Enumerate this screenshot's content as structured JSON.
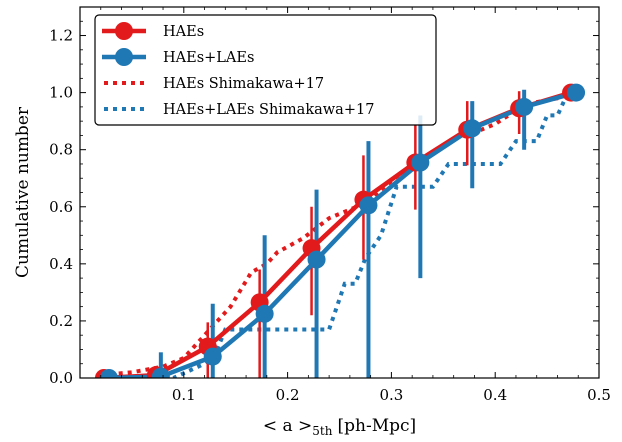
{
  "chart_data": {
    "type": "line",
    "xlabel": "< a >",
    "xlabel_subscript": "5th",
    "xlabel_unit": "[ph-Mpc]",
    "ylabel": "Cumulative number",
    "xlim": [
      0.0,
      0.5
    ],
    "ylim": [
      0.0,
      1.3
    ],
    "x_ticks": [
      0.1,
      0.2,
      0.3,
      0.4,
      0.5
    ],
    "x_tick_labels": [
      "0.1",
      "0.2",
      "0.3",
      "0.4",
      "0.5"
    ],
    "y_ticks": [
      0.0,
      0.2,
      0.4,
      0.6,
      0.8,
      1.0,
      1.2
    ],
    "y_tick_labels": [
      "0.0",
      "0.2",
      "0.4",
      "0.6",
      "0.8",
      "1.0",
      "1.2"
    ],
    "grid": false,
    "legend_position": "top-left",
    "series": [
      {
        "name": "HAEs",
        "style": "solid-marker",
        "color": "#e31a1c",
        "x": [
          0.025,
          0.075,
          0.125,
          0.175,
          0.225,
          0.275,
          0.325,
          0.375,
          0.425,
          0.475
        ],
        "y": [
          0.0,
          0.01,
          0.11,
          0.265,
          0.455,
          0.625,
          0.755,
          0.87,
          0.945,
          1.0
        ],
        "err_low": [
          0.0,
          0.0,
          0.11,
          0.265,
          0.235,
          0.21,
          0.165,
          0.125,
          0.09,
          0.0
        ],
        "err_high": [
          0.0,
          0.0,
          0.085,
          0.115,
          0.145,
          0.155,
          0.13,
          0.1,
          0.06,
          0.0
        ]
      },
      {
        "name": "HAEs+LAEs",
        "style": "solid-marker",
        "color": "#1f77b4",
        "x": [
          0.025,
          0.075,
          0.125,
          0.175,
          0.225,
          0.275,
          0.325,
          0.375,
          0.425,
          0.475
        ],
        "y": [
          0.0,
          0.005,
          0.075,
          0.225,
          0.415,
          0.605,
          0.755,
          0.875,
          0.95,
          1.0
        ],
        "err_low": [
          0.0,
          0.005,
          0.075,
          0.225,
          0.415,
          0.605,
          0.405,
          0.21,
          0.15,
          0.0
        ],
        "err_high": [
          0.0,
          0.085,
          0.185,
          0.275,
          0.245,
          0.225,
          0.165,
          0.095,
          0.06,
          0.0
        ]
      },
      {
        "name": "HAEs Shimakawa+17",
        "style": "dotted",
        "color": "#e31a1c",
        "x": [
          0.02,
          0.05,
          0.08,
          0.1,
          0.115,
          0.13,
          0.145,
          0.155,
          0.165,
          0.18,
          0.19,
          0.205,
          0.215,
          0.24,
          0.26,
          0.28,
          0.29,
          0.31,
          0.33,
          0.345,
          0.36,
          0.38,
          0.4,
          0.43,
          0.46,
          0.475
        ],
        "y": [
          0.01,
          0.02,
          0.04,
          0.07,
          0.13,
          0.19,
          0.25,
          0.31,
          0.37,
          0.4,
          0.44,
          0.47,
          0.49,
          0.56,
          0.59,
          0.62,
          0.66,
          0.72,
          0.76,
          0.8,
          0.84,
          0.86,
          0.89,
          0.96,
          0.98,
          1.0
        ]
      },
      {
        "name": "HAEs+LAEs Shimakawa+17",
        "style": "dotted",
        "color": "#1f77b4",
        "x": [
          0.02,
          0.09,
          0.12,
          0.13,
          0.14,
          0.19,
          0.22,
          0.24,
          0.255,
          0.265,
          0.275,
          0.29,
          0.305,
          0.34,
          0.355,
          0.365,
          0.39,
          0.405,
          0.42,
          0.44,
          0.45,
          0.46,
          0.47,
          0.48
        ],
        "y": [
          0.0,
          0.0,
          0.05,
          0.08,
          0.17,
          0.17,
          0.17,
          0.17,
          0.33,
          0.33,
          0.42,
          0.5,
          0.67,
          0.67,
          0.75,
          0.75,
          0.75,
          0.75,
          0.83,
          0.83,
          0.92,
          0.92,
          1.0,
          1.0
        ]
      }
    ]
  }
}
